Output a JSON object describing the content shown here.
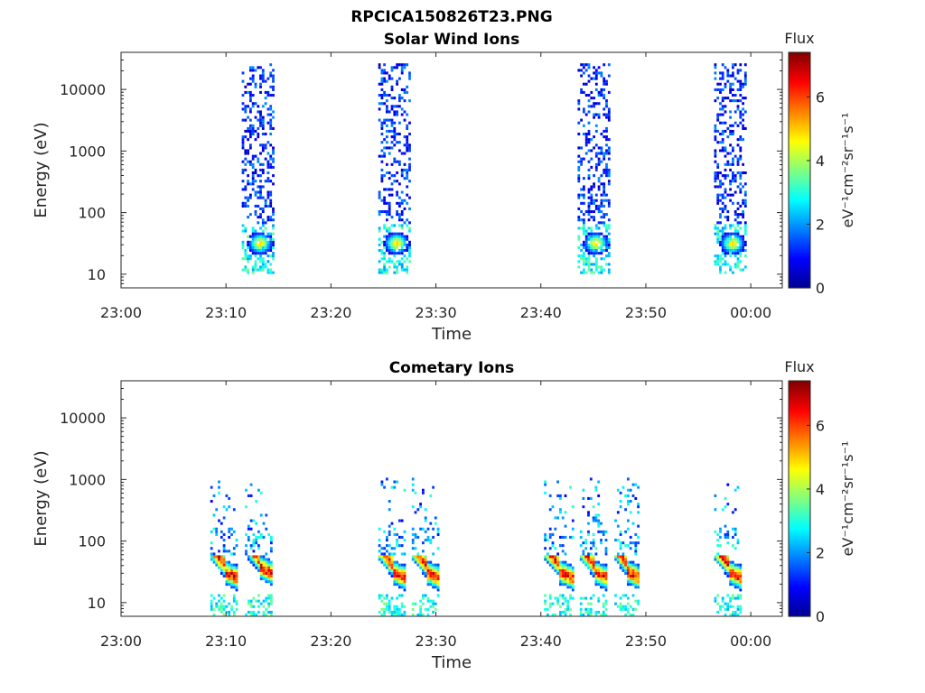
{
  "figure_title": "RPCICA150826T23.PNG",
  "colors": {
    "colormap": [
      "#00008f",
      "#0000ff",
      "#0080ff",
      "#00ffff",
      "#80ff80",
      "#ffff00",
      "#ff8000",
      "#ff0000",
      "#800000"
    ],
    "axis": "#262626"
  },
  "chart_data": [
    {
      "type": "heatmap",
      "title": "Solar Wind Ions",
      "xlabel": "Time",
      "ylabel": "Energy (eV)",
      "x_ticks": [
        "23:00",
        "23:10",
        "23:20",
        "23:30",
        "23:40",
        "23:50",
        "00:00"
      ],
      "x_range_minutes": [
        0,
        63
      ],
      "y_scale": "log",
      "y_ticks": [
        "10",
        "100",
        "1000",
        "10000"
      ],
      "y_range": [
        6,
        40000
      ],
      "colorbar": {
        "label": "Flux",
        "units": "eV⁻¹cm⁻²sr⁻¹s⁻¹",
        "ticks": [
          "0",
          "2",
          "4",
          "6"
        ],
        "range": [
          0,
          7.4
        ]
      },
      "series": [
        {
          "t_start": 11.5,
          "t_end": 14.5,
          "flux_peak": 5.0,
          "peak_energy": 30
        },
        {
          "t_start": 24.5,
          "t_end": 27.5,
          "flux_peak": 5.0,
          "peak_energy": 30
        },
        {
          "t_start": 43.5,
          "t_end": 46.5,
          "flux_peak": 5.0,
          "peak_energy": 30
        },
        {
          "t_start": 56.5,
          "t_end": 59.5,
          "flux_peak": 5.0,
          "peak_energy": 30
        }
      ]
    },
    {
      "type": "heatmap",
      "title": "Cometary Ions",
      "xlabel": "Time",
      "ylabel": "Energy (eV)",
      "x_ticks": [
        "23:00",
        "23:10",
        "23:20",
        "23:30",
        "23:40",
        "23:50",
        "00:00"
      ],
      "x_range_minutes": [
        0,
        63
      ],
      "y_scale": "log",
      "y_ticks": [
        "10",
        "100",
        "1000",
        "10000"
      ],
      "y_range": [
        6,
        40000
      ],
      "colorbar": {
        "label": "Flux",
        "units": "eV⁻¹cm⁻²sr⁻¹s⁻¹",
        "ticks": [
          "0",
          "2",
          "4",
          "6"
        ],
        "range": [
          0,
          7.4
        ]
      },
      "series": [
        {
          "t_start": 8.5,
          "t_end": 11.0,
          "flux_peak": 7.0,
          "peak_energy": 25
        },
        {
          "t_start": 11.8,
          "t_end": 14.3,
          "flux_peak": 7.0,
          "peak_energy": 30
        },
        {
          "t_start": 24.5,
          "t_end": 27.0,
          "flux_peak": 7.0,
          "peak_energy": 25
        },
        {
          "t_start": 27.7,
          "t_end": 30.2,
          "flux_peak": 7.0,
          "peak_energy": 25
        },
        {
          "t_start": 40.3,
          "t_end": 43.0,
          "flux_peak": 7.0,
          "peak_energy": 25
        },
        {
          "t_start": 43.7,
          "t_end": 46.2,
          "flux_peak": 7.0,
          "peak_energy": 25
        },
        {
          "t_start": 47.0,
          "t_end": 49.3,
          "flux_peak": 7.0,
          "peak_energy": 25
        },
        {
          "t_start": 56.5,
          "t_end": 59.0,
          "flux_peak": 7.0,
          "peak_energy": 25
        }
      ]
    }
  ]
}
